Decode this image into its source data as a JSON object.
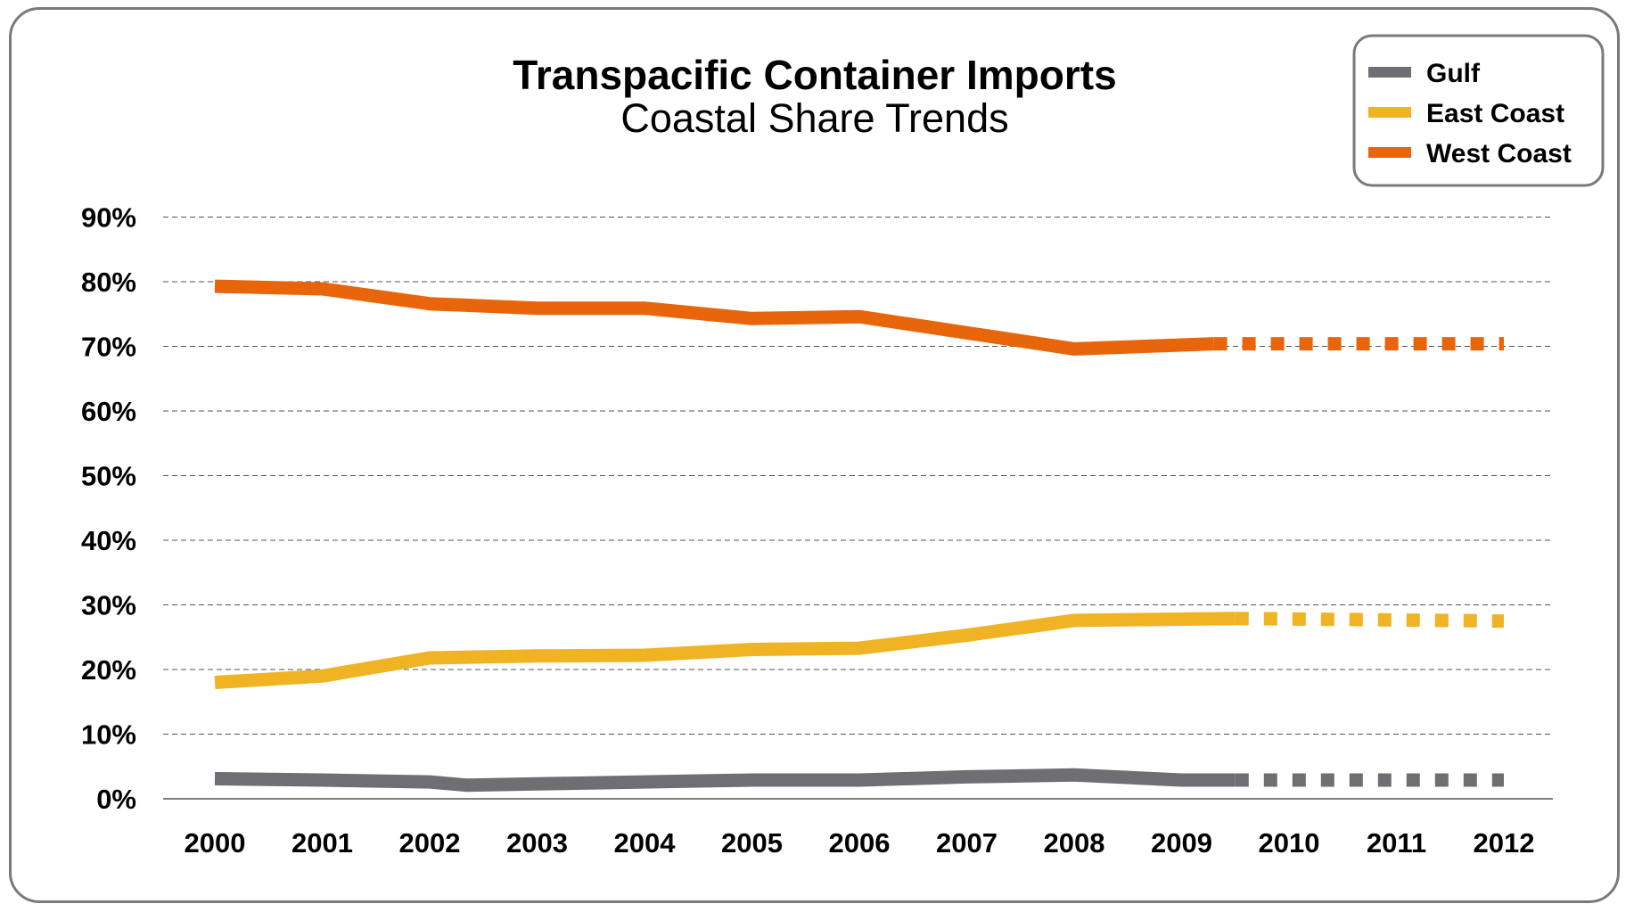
{
  "chart_data": {
    "type": "line",
    "title": "Transpacific Container Imports",
    "subtitle": "Coastal Share Trends",
    "xlabel": "",
    "ylabel": "",
    "x": [
      "2000",
      "2001",
      "2002",
      "2003",
      "2004",
      "2005",
      "2006",
      "2007",
      "2008",
      "2009",
      "2010",
      "2011",
      "2012"
    ],
    "y_ticks": [
      "0%",
      "10%",
      "20%",
      "30%",
      "40%",
      "50%",
      "60%",
      "70%",
      "80%",
      "90%"
    ],
    "ylim": [
      0,
      90
    ],
    "grid": "horizontal dashed",
    "legend_position": "top-right",
    "series": [
      {
        "name": "Gulf",
        "color": "#6e6e73",
        "actual": [
          [
            2000,
            3.1
          ],
          [
            2001,
            2.9
          ],
          [
            2002,
            2.6
          ],
          [
            2002.35,
            2.1
          ],
          [
            2003,
            2.3
          ],
          [
            2004,
            2.6
          ],
          [
            2005,
            2.9
          ],
          [
            2006,
            2.9
          ],
          [
            2007,
            3.4
          ],
          [
            2008,
            3.7
          ],
          [
            2009,
            2.9
          ],
          [
            2009.5,
            2.9
          ]
        ],
        "projected": [
          [
            2009.5,
            2.9
          ],
          [
            2012,
            2.9
          ]
        ]
      },
      {
        "name": "East Coast",
        "color": "#f0b323",
        "actual": [
          [
            2000,
            18.0
          ],
          [
            2001,
            19.0
          ],
          [
            2002,
            21.8
          ],
          [
            2003,
            22.1
          ],
          [
            2004,
            22.2
          ],
          [
            2005,
            23.1
          ],
          [
            2006,
            23.3
          ],
          [
            2007,
            25.3
          ],
          [
            2008,
            27.6
          ],
          [
            2009,
            27.8
          ],
          [
            2009.5,
            27.9
          ]
        ],
        "projected": [
          [
            2009.5,
            27.9
          ],
          [
            2012,
            27.5
          ]
        ]
      },
      {
        "name": "West Coast",
        "color": "#e8650c",
        "actual": [
          [
            2000,
            79.3
          ],
          [
            2001,
            78.9
          ],
          [
            2002,
            76.6
          ],
          [
            2003,
            75.9
          ],
          [
            2004,
            75.9
          ],
          [
            2005,
            74.3
          ],
          [
            2006,
            74.6
          ],
          [
            2007,
            72.1
          ],
          [
            2008,
            69.6
          ],
          [
            2009,
            70.2
          ],
          [
            2009.3,
            70.4
          ]
        ],
        "projected": [
          [
            2009.3,
            70.4
          ],
          [
            2012,
            70.4
          ]
        ]
      }
    ]
  }
}
